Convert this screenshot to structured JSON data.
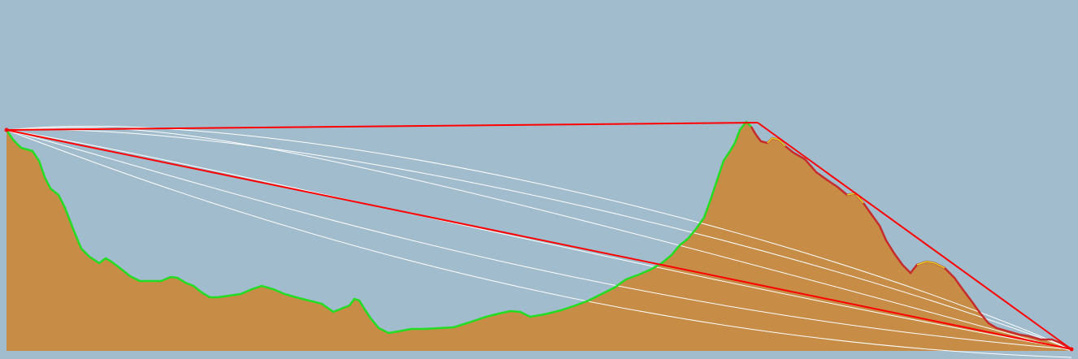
{
  "colors": {
    "sky": "#a1bccd",
    "terrain_fill": "#c78c46",
    "profile_visible": "#22dd22",
    "profile_hidden": "#c62c2c",
    "profile_partial": "#dddd22",
    "line_of_sight": "#ff0000",
    "fresnel_zone": "#ffffff"
  },
  "profile": {
    "observer_side": "left",
    "target_side": "right",
    "peak_position": "right of center"
  }
}
